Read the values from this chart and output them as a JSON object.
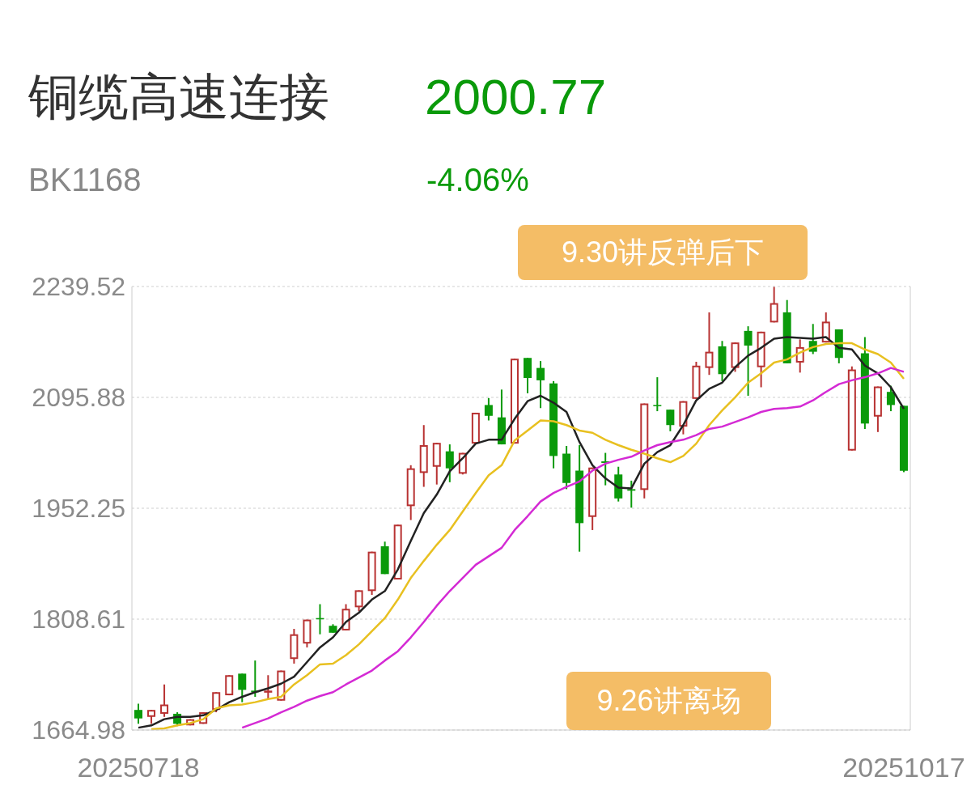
{
  "chart_data": {
    "type": "candlestick",
    "title": "铜缆高速连接",
    "subtitle": "BK1168",
    "annotations": [
      "2000.77",
      "-4.06%",
      "9.30讲反弹后下",
      "9.26讲离场"
    ],
    "categories": [
      "20250718",
      null,
      null,
      null,
      null,
      null,
      null,
      null,
      null,
      null,
      null,
      null,
      null,
      null,
      null,
      null,
      null,
      null,
      null,
      null,
      null,
      null,
      null,
      null,
      null,
      null,
      null,
      null,
      null,
      null,
      null,
      null,
      null,
      null,
      null,
      null,
      null,
      null,
      null,
      null,
      null,
      null,
      null,
      null,
      null,
      null,
      null,
      null,
      null,
      null,
      null,
      null,
      null,
      null,
      null,
      null,
      null,
      null,
      null,
      "20251017"
    ],
    "ohlc": [
      [
        1691,
        1699,
        1673,
        1680
      ],
      [
        1682,
        1691,
        1673,
        1691
      ],
      [
        1686,
        1724,
        1682,
        1698
      ],
      [
        1686,
        1688,
        1670,
        1673
      ],
      [
        1671,
        1679,
        1671,
        1679
      ],
      [
        1673,
        1688,
        1673,
        1688
      ],
      [
        1691,
        1714,
        1688,
        1714
      ],
      [
        1710,
        1736,
        1710,
        1736
      ],
      [
        1738,
        1738,
        1701,
        1717
      ],
      [
        1716,
        1755,
        1708,
        1714
      ],
      [
        1714,
        1736,
        1705,
        1716
      ],
      [
        1703,
        1742,
        1703,
        1742
      ],
      [
        1757,
        1796,
        1751,
        1789
      ],
      [
        1777,
        1808,
        1772,
        1808
      ],
      [
        1810,
        1828,
        1789,
        1809
      ],
      [
        1800,
        1802,
        1791,
        1791
      ],
      [
        1794,
        1828,
        1794,
        1822
      ],
      [
        1824,
        1846,
        1819,
        1846
      ],
      [
        1845,
        1896,
        1840,
        1896
      ],
      [
        1903,
        1909,
        1867,
        1867
      ],
      [
        1860,
        1931,
        1860,
        1931
      ],
      [
        1955,
        2008,
        1937,
        2004
      ],
      [
        1998,
        2060,
        1980,
        2034
      ],
      [
        2006,
        2037,
        1983,
        2037
      ],
      [
        2026,
        2035,
        1986,
        2004
      ],
      [
        1997,
        2024,
        1996,
        2024
      ],
      [
        2036,
        2076,
        2036,
        2076
      ],
      [
        2086,
        2095,
        2066,
        2072
      ],
      [
        2070,
        2106,
        2035,
        2035
      ],
      [
        2036,
        2146,
        2036,
        2146
      ],
      [
        2147,
        2147,
        2101,
        2121
      ],
      [
        2134,
        2143,
        2082,
        2118
      ],
      [
        2114,
        2117,
        2004,
        2020
      ],
      [
        2023,
        2033,
        1977,
        1985
      ],
      [
        2001,
        2034,
        1896,
        1933
      ],
      [
        1941,
        2005,
        1924,
        2005
      ],
      [
        2013,
        2024,
        1982,
        2011
      ],
      [
        1996,
        2006,
        1961,
        1965
      ],
      [
        1977,
        1988,
        1953,
        1975
      ],
      [
        1976,
        2088,
        1965,
        2088
      ],
      [
        2086,
        2122,
        2078,
        2085
      ],
      [
        2080,
        2080,
        2052,
        2060
      ],
      [
        2058,
        2091,
        2048,
        2091
      ],
      [
        2094,
        2142,
        2094,
        2137
      ],
      [
        2134,
        2206,
        2125,
        2155
      ],
      [
        2162,
        2169,
        2117,
        2126
      ],
      [
        2134,
        2167,
        2129,
        2167
      ],
      [
        2182,
        2188,
        2098,
        2163
      ],
      [
        2135,
        2181,
        2109,
        2181
      ],
      [
        2193,
        2239,
        2193,
        2218
      ],
      [
        2206,
        2222,
        2140,
        2140
      ],
      [
        2141,
        2171,
        2128,
        2161
      ],
      [
        2169,
        2191,
        2152,
        2155
      ],
      [
        2167,
        2206,
        2167,
        2194
      ],
      [
        2184,
        2184,
        2140,
        2147
      ],
      [
        2027,
        2136,
        2027,
        2132
      ],
      [
        2153,
        2174,
        2055,
        2062
      ],
      [
        2071,
        2110,
        2051,
        2110
      ],
      [
        2103,
        2111,
        2078,
        2086
      ],
      [
        2085,
        2085,
        1999,
        2000.77
      ]
    ],
    "colors": [
      "#0a9a0a",
      "#b83232",
      "#b83232",
      "#0a9a0a",
      "#b83232",
      "#b83232",
      "#b83232",
      "#b83232",
      "#0a9a0a",
      "#0a9a0a",
      "#b83232",
      "#b83232",
      "#b83232",
      "#b83232",
      "#0a9a0a",
      "#0a9a0a",
      "#b83232",
      "#b83232",
      "#b83232",
      "#0a9a0a",
      "#b83232",
      "#b83232",
      "#b83232",
      "#b83232",
      "#0a9a0a",
      "#b83232",
      "#b83232",
      "#0a9a0a",
      "#0a9a0a",
      "#b83232",
      "#0a9a0a",
      "#0a9a0a",
      "#0a9a0a",
      "#0a9a0a",
      "#0a9a0a",
      "#b83232",
      "#0a9a0a",
      "#0a9a0a",
      "#0a9a0a",
      "#b83232",
      "#0a9a0a",
      "#0a9a0a",
      "#b83232",
      "#b83232",
      "#b83232",
      "#0a9a0a",
      "#b83232",
      "#0a9a0a",
      "#b83232",
      "#b83232",
      "#0a9a0a",
      "#b83232",
      "#0a9a0a",
      "#b83232",
      "#0a9a0a",
      "#b83232",
      "#0a9a0a",
      "#b83232",
      "#0a9a0a",
      "#0a9a0a"
    ],
    "series": [
      {
        "type": "line",
        "color": "#222222",
        "values": [
          1668,
          1671,
          1679,
          1682,
          1682,
          1684,
          1691,
          1701,
          1708,
          1714,
          1719,
          1725,
          1734,
          1753,
          1772,
          1785,
          1805,
          1817,
          1834,
          1845,
          1873,
          1910,
          1946,
          1970,
          2000,
          2017,
          2036,
          2041,
          2041,
          2068,
          2091,
          2098,
          2089,
          2077,
          2038,
          2008,
          1991,
          1979,
          1978,
          2010,
          2025,
          2034,
          2060,
          2092,
          2107,
          2115,
          2135,
          2150,
          2160,
          2172,
          2174,
          2173,
          2172,
          2174,
          2160,
          2158,
          2137,
          2127,
          2109,
          2081
        ]
      },
      {
        "type": "line",
        "color": "#e8c020",
        "values": [
          null,
          1666,
          1667,
          1671,
          1674,
          1679,
          1693,
          1697,
          1698,
          1701,
          1705,
          1708,
          1724,
          1736,
          1750,
          1751,
          1762,
          1776,
          1793,
          1810,
          1834,
          1862,
          1884,
          1905,
          1924,
          1948,
          1972,
          1995,
          2008,
          2040,
          2053,
          2066,
          2065,
          2060,
          2053,
          2050,
          2041,
          2034,
          2028,
          2023,
          2017,
          2012,
          2020,
          2036,
          2060,
          2079,
          2096,
          2115,
          2127,
          2141,
          2145,
          2154,
          2161,
          2165,
          2166,
          2166,
          2158,
          2152,
          2141,
          2120
        ]
      },
      {
        "type": "line",
        "color": "#d42ad4",
        "values": [
          null,
          null,
          null,
          null,
          null,
          null,
          null,
          null,
          1668,
          1674,
          1680,
          1688,
          1695,
          1703,
          1709,
          1714,
          1724,
          1733,
          1742,
          1755,
          1767,
          1785,
          1805,
          1826,
          1845,
          1862,
          1879,
          1890,
          1901,
          1924,
          1942,
          1961,
          1972,
          1980,
          1987,
          2001,
          2010,
          2015,
          2019,
          2027,
          2034,
          2038,
          2041,
          2047,
          2055,
          2058,
          2064,
          2070,
          2077,
          2081,
          2082,
          2084,
          2092,
          2103,
          2113,
          2118,
          2122,
          2127,
          2134,
          2129
        ]
      }
    ],
    "ylim": [
      1664.98,
      2239.52
    ],
    "yticks": [
      1664.98,
      1808.61,
      1952.25,
      2095.88,
      2239.52
    ],
    "grid": "y"
  }
}
